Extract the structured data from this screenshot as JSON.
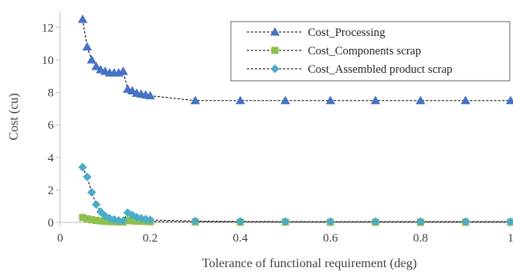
{
  "chart_data": {
    "type": "scatter",
    "xlabel": "Tolerance of functional requirement (deg)",
    "ylabel": "Cost (cu)",
    "xlim": [
      0,
      1
    ],
    "ylim": [
      0,
      13
    ],
    "x_ticks": [
      "0",
      "0.2",
      "0.4",
      "0.6",
      "0.8",
      "1"
    ],
    "x_tick_values": [
      0,
      0.2,
      0.4,
      0.6,
      0.8,
      1.0
    ],
    "y_ticks": [
      "0",
      "2",
      "4",
      "6",
      "8",
      "10",
      "12"
    ],
    "y_tick_values": [
      0,
      2,
      4,
      6,
      8,
      10,
      12
    ],
    "grid": false,
    "legend_position": "top-right",
    "series": [
      {
        "name": "Cost_Processing",
        "color": "#4472c4",
        "marker": "triangle",
        "line": "dashed",
        "x": [
          0.05,
          0.06,
          0.07,
          0.08,
          0.09,
          0.1,
          0.11,
          0.12,
          0.13,
          0.14,
          0.15,
          0.16,
          0.17,
          0.18,
          0.19,
          0.2,
          0.3,
          0.4,
          0.5,
          0.6,
          0.7,
          0.8,
          0.9,
          1.0
        ],
        "y": [
          12.5,
          10.8,
          10.0,
          9.6,
          9.4,
          9.3,
          9.2,
          9.2,
          9.2,
          9.3,
          8.2,
          8.1,
          7.95,
          7.9,
          7.85,
          7.8,
          7.5,
          7.5,
          7.5,
          7.5,
          7.5,
          7.5,
          7.5,
          7.5
        ]
      },
      {
        "name": "Cost_Components scrap",
        "color": "#8fbf4d",
        "marker": "square",
        "line": "dashed",
        "x": [
          0.05,
          0.06,
          0.07,
          0.08,
          0.09,
          0.1,
          0.11,
          0.12,
          0.13,
          0.14,
          0.15,
          0.16,
          0.17,
          0.18,
          0.19,
          0.2,
          0.3,
          0.4,
          0.5,
          0.6,
          0.7,
          0.8,
          0.9,
          1.0
        ],
        "y": [
          0.3,
          0.22,
          0.16,
          0.12,
          0.09,
          0.07,
          0.05,
          0.04,
          0.03,
          0.03,
          0.12,
          0.1,
          0.08,
          0.07,
          0.06,
          0.05,
          0.03,
          0.02,
          0.02,
          0.01,
          0.01,
          0.01,
          0.01,
          0.01
        ]
      },
      {
        "name": "Cost_Assembled product scrap",
        "color": "#4bacc6",
        "marker": "diamond",
        "line": "dashed",
        "x": [
          0.05,
          0.06,
          0.07,
          0.08,
          0.09,
          0.1,
          0.11,
          0.12,
          0.13,
          0.14,
          0.15,
          0.16,
          0.17,
          0.18,
          0.19,
          0.2,
          0.3,
          0.4,
          0.5,
          0.6,
          0.7,
          0.8,
          0.9,
          1.0
        ],
        "y": [
          3.4,
          2.8,
          1.85,
          1.1,
          0.65,
          0.4,
          0.25,
          0.18,
          0.12,
          0.1,
          0.6,
          0.45,
          0.32,
          0.25,
          0.2,
          0.15,
          0.08,
          0.06,
          0.05,
          0.05,
          0.05,
          0.05,
          0.05,
          0.05
        ]
      }
    ]
  }
}
